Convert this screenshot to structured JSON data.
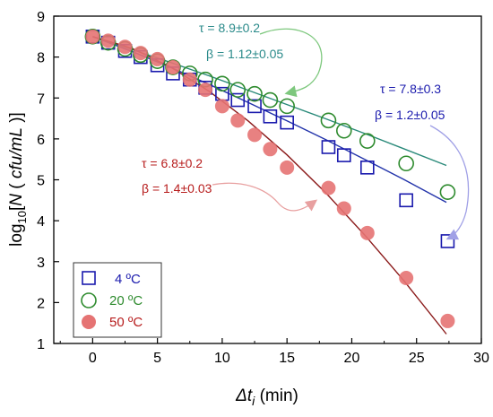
{
  "chart_data": {
    "type": "scatter",
    "xlabel": "Δt_i (min)",
    "ylabel": "log10[N ( cfu/mL )]",
    "xlim": [
      -3,
      30
    ],
    "ylim": [
      1,
      9
    ],
    "xticks": [
      "0",
      "5",
      "10",
      "15",
      "20",
      "25",
      "30"
    ],
    "yticks": [
      "1",
      "2",
      "3",
      "4",
      "5",
      "6",
      "7",
      "8",
      "9"
    ],
    "grid": false,
    "legend_position": "bottom-left",
    "series": [
      {
        "name": "4 ºC",
        "color": "#1a1aad",
        "marker": "open-square",
        "x": [
          0,
          1.2,
          2.5,
          3.7,
          5.0,
          6.2,
          7.5,
          8.7,
          10.0,
          11.2,
          12.5,
          13.7,
          15.0,
          18.2,
          19.4,
          21.2,
          24.2,
          27.4
        ],
        "y": [
          8.5,
          8.35,
          8.15,
          8.0,
          7.8,
          7.6,
          7.45,
          7.25,
          7.1,
          6.95,
          6.8,
          6.55,
          6.4,
          5.8,
          5.6,
          5.3,
          4.5,
          3.5
        ],
        "fit_x": [
          0,
          3,
          6,
          9,
          12,
          15,
          18,
          21,
          24,
          27.3
        ],
        "fit_y": [
          8.5,
          8.14,
          7.75,
          7.33,
          6.89,
          6.44,
          5.98,
          5.5,
          5.01,
          4.45
        ],
        "fit_color": "#2233aa"
      },
      {
        "name": "20 ºC",
        "color": "#2e8b2e",
        "marker": "open-circle",
        "x": [
          0,
          1.2,
          2.5,
          3.7,
          5.0,
          6.2,
          7.5,
          8.7,
          10.0,
          11.2,
          12.5,
          13.7,
          15.0,
          18.2,
          19.4,
          21.2,
          24.2,
          27.4
        ],
        "y": [
          8.5,
          8.35,
          8.2,
          8.05,
          7.9,
          7.75,
          7.6,
          7.45,
          7.35,
          7.2,
          7.1,
          6.95,
          6.8,
          6.45,
          6.2,
          5.95,
          5.4,
          4.7
        ],
        "fit_x": [
          0,
          3,
          6,
          9,
          12,
          15,
          18,
          21,
          24,
          27.3
        ],
        "fit_y": [
          8.5,
          8.19,
          7.87,
          7.54,
          7.19,
          6.84,
          6.49,
          6.13,
          5.76,
          5.35
        ],
        "fit_color": "#2a8a7a"
      },
      {
        "name": "50 ºC",
        "color": "#e57373",
        "marker": "filled-circle",
        "x": [
          0,
          1.2,
          2.5,
          3.7,
          5.0,
          6.2,
          7.5,
          8.7,
          10.0,
          11.2,
          12.5,
          13.7,
          15.0,
          18.2,
          19.4,
          21.2,
          24.2,
          27.4
        ],
        "y": [
          8.5,
          8.4,
          8.25,
          8.1,
          7.95,
          7.75,
          7.45,
          7.2,
          6.8,
          6.45,
          6.1,
          5.75,
          5.3,
          4.8,
          4.3,
          3.7,
          2.6,
          1.55
        ],
        "fit_x": [
          0,
          3,
          6,
          9,
          12,
          15,
          18,
          21,
          24,
          27.3
        ],
        "fit_y": [
          8.5,
          8.22,
          7.76,
          7.16,
          6.44,
          5.61,
          4.68,
          3.65,
          2.54,
          1.23
        ],
        "fit_color": "#8b1a1a"
      }
    ],
    "annotations": [
      {
        "tau": "τ = 8.9±0.2",
        "beta": "β = 1.12±0.05",
        "color": "#2a8a8a",
        "arrow_color": "#7ec87e"
      },
      {
        "tau": "τ = 7.8±0.3",
        "beta": "β = 1.2±0.05",
        "color": "#1a1aad",
        "arrow_color": "#a0a0e6"
      },
      {
        "tau": "τ = 6.8±0.2",
        "beta": "β = 1.4±0.03",
        "color": "#b71c1c",
        "arrow_color": "#e8a0a0"
      }
    ]
  }
}
